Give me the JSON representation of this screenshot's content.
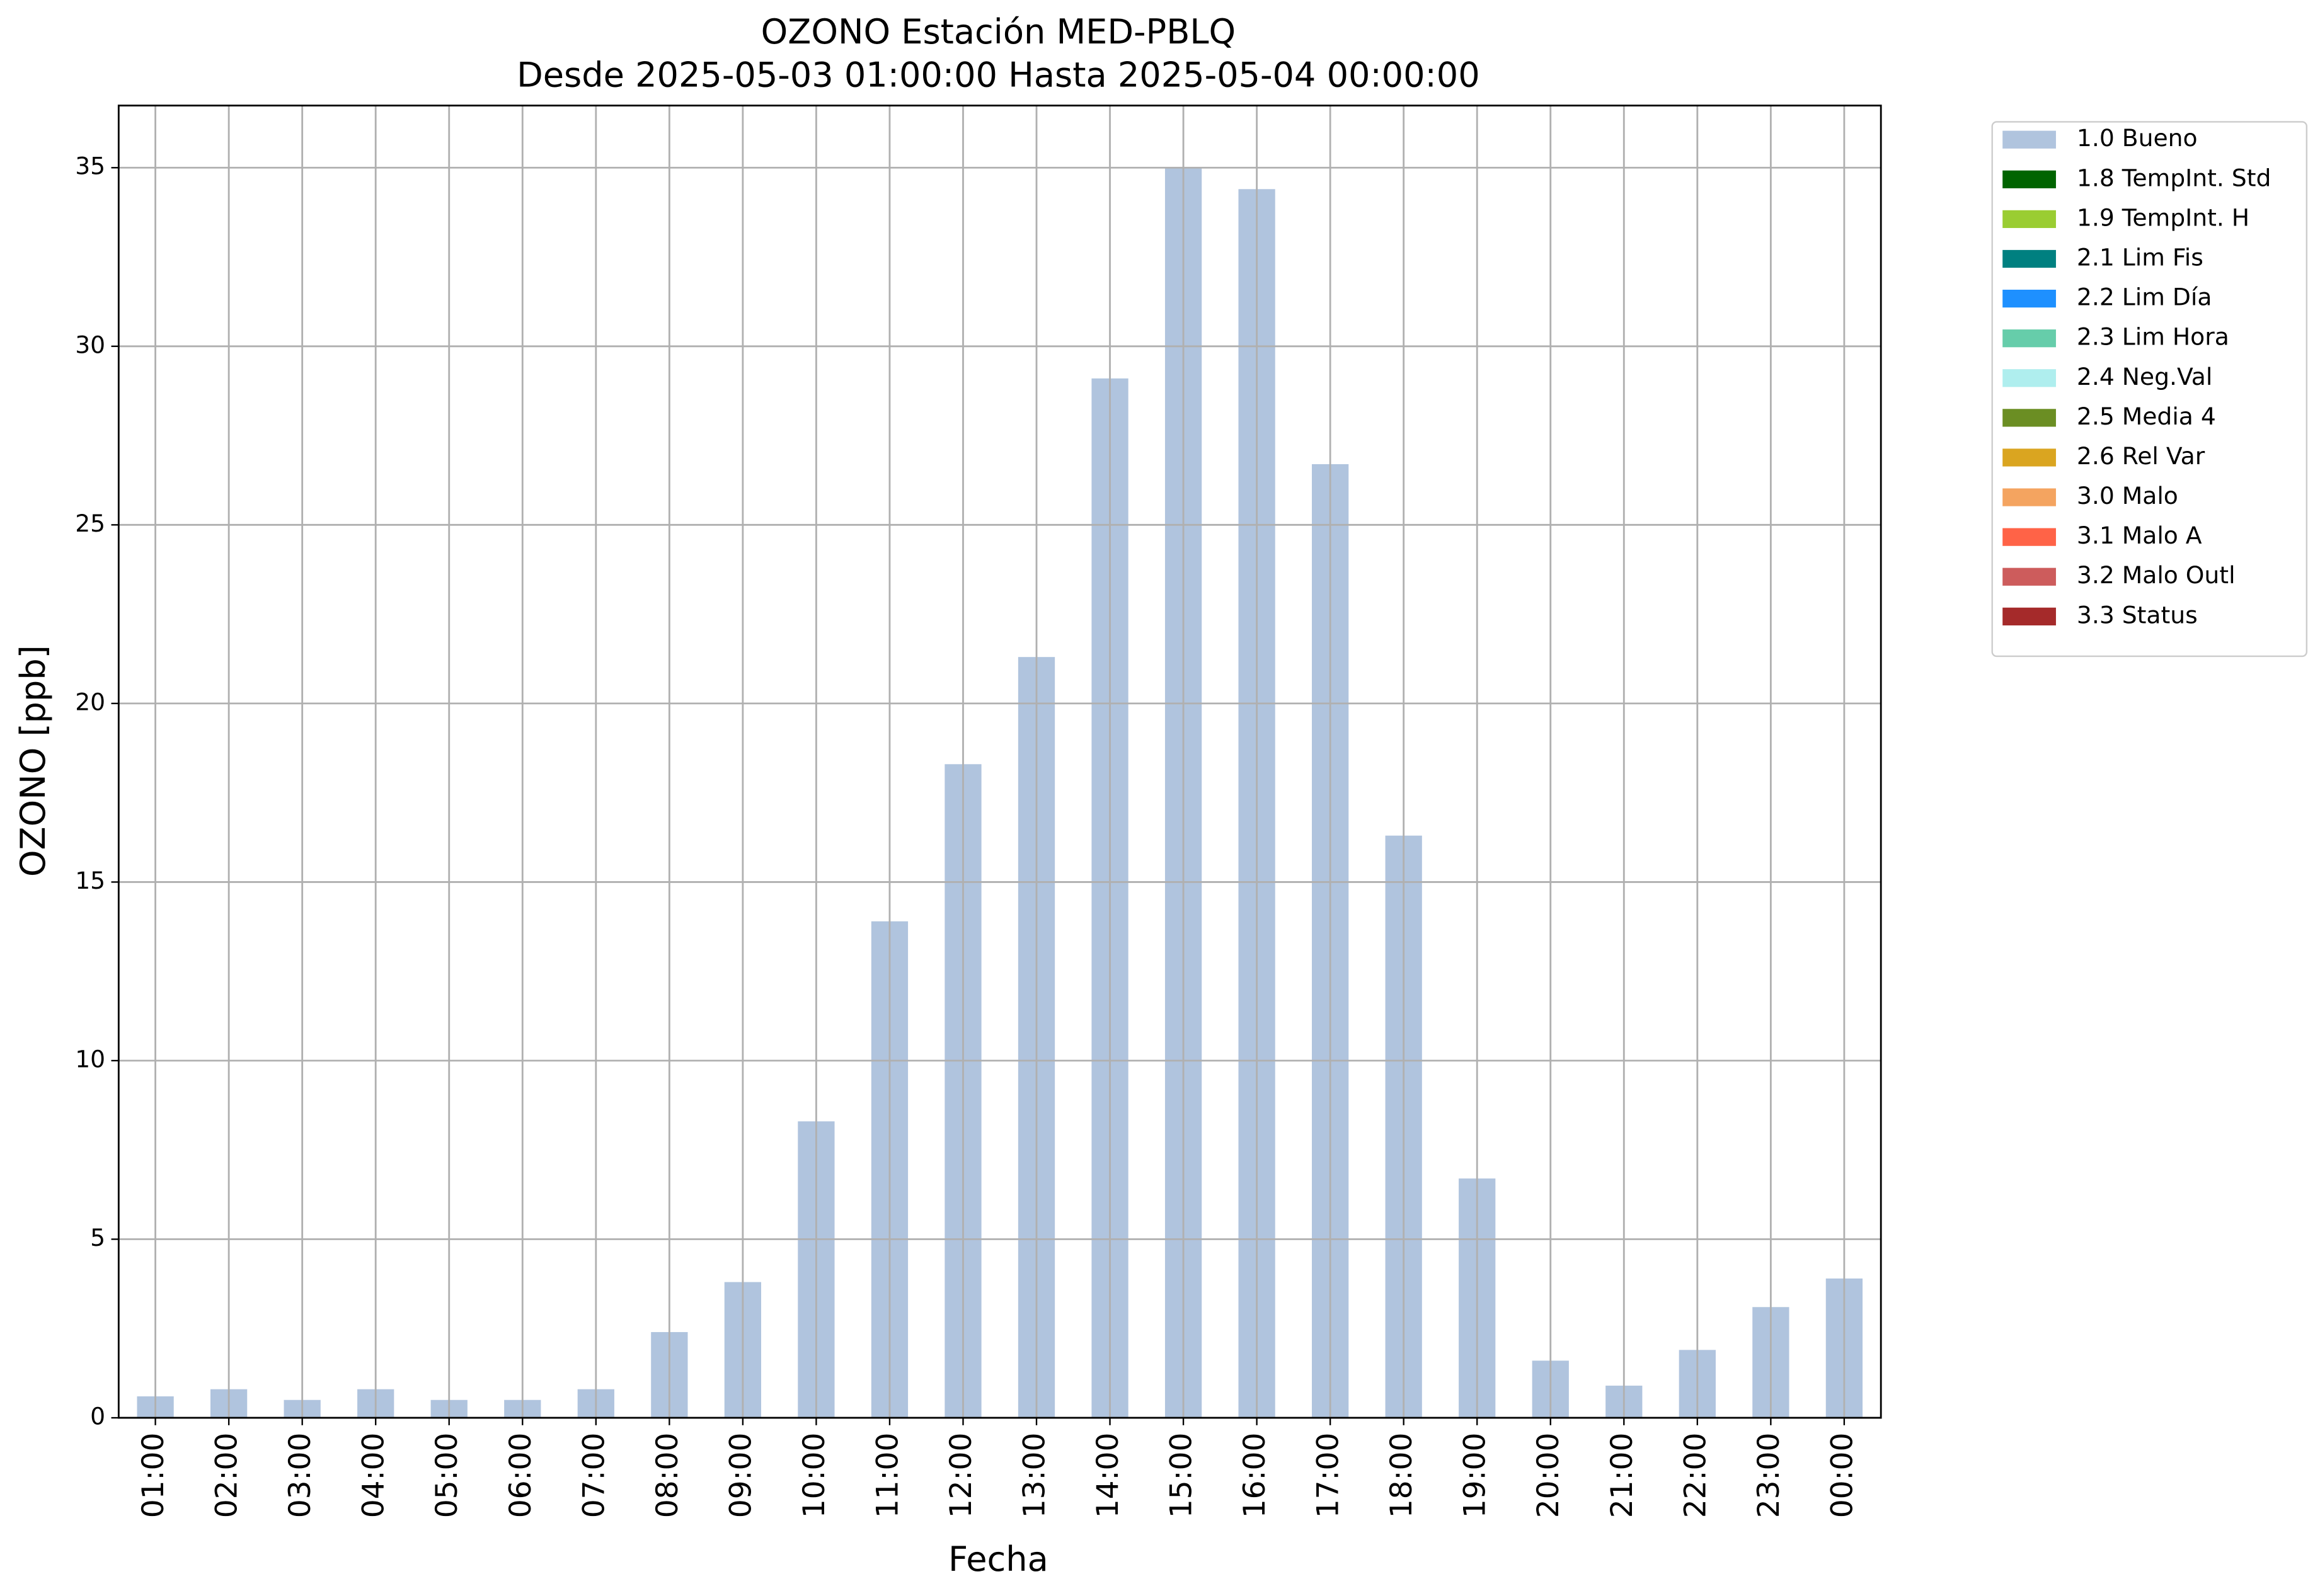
{
  "chart_data": {
    "type": "bar",
    "stacked": true,
    "title": "OZONO Estación MED-PBLQ",
    "subtitle": "Desde 2025-05-03 01:00:00 Hasta 2025-05-04 00:00:00",
    "x_label": "Fecha",
    "y_label": "OZONO [ppb]",
    "categories": [
      "01:00",
      "02:00",
      "03:00",
      "04:00",
      "05:00",
      "06:00",
      "07:00",
      "08:00",
      "09:00",
      "10:00",
      "11:00",
      "12:00",
      "13:00",
      "14:00",
      "15:00",
      "16:00",
      "17:00",
      "18:00",
      "19:00",
      "20:00",
      "21:00",
      "22:00",
      "23:00",
      "00:00"
    ],
    "series": [
      {
        "name": "1.0 Bueno",
        "color": "#b0c4de",
        "values": [
          0.6,
          0.8,
          0.5,
          0.8,
          0.5,
          0.5,
          0.8,
          2.4,
          3.8,
          8.3,
          13.9,
          18.3,
          21.3,
          29.1,
          35.0,
          34.4,
          26.7,
          16.3,
          6.7,
          1.6,
          0.9,
          1.9,
          3.1,
          3.9
        ]
      },
      {
        "name": "1.8 TempInt. Std",
        "color": "#006400",
        "values": [
          null,
          null,
          null,
          null,
          null,
          null,
          null,
          null,
          null,
          null,
          null,
          null,
          null,
          null,
          null,
          null,
          null,
          null,
          null,
          null,
          null,
          null,
          null,
          null
        ]
      },
      {
        "name": "1.9 TempInt. H",
        "color": "#9acd32",
        "values": [
          null,
          null,
          null,
          null,
          null,
          null,
          null,
          null,
          null,
          null,
          null,
          null,
          null,
          null,
          null,
          null,
          null,
          null,
          null,
          null,
          null,
          null,
          null,
          null
        ]
      },
      {
        "name": "2.1 Lim Fis",
        "color": "#008080",
        "values": [
          null,
          null,
          null,
          null,
          null,
          null,
          null,
          null,
          null,
          null,
          null,
          null,
          null,
          null,
          null,
          null,
          null,
          null,
          null,
          null,
          null,
          null,
          null,
          null
        ]
      },
      {
        "name": "2.2 Lim Día",
        "color": "#1e90ff",
        "values": [
          null,
          null,
          null,
          null,
          null,
          null,
          null,
          null,
          null,
          null,
          null,
          null,
          null,
          null,
          null,
          null,
          null,
          null,
          null,
          null,
          null,
          null,
          null,
          null
        ]
      },
      {
        "name": "2.3 Lim Hora",
        "color": "#66cdaa",
        "values": [
          null,
          null,
          null,
          null,
          null,
          null,
          null,
          null,
          null,
          null,
          null,
          null,
          null,
          null,
          null,
          null,
          null,
          null,
          null,
          null,
          null,
          null,
          null,
          null
        ]
      },
      {
        "name": "2.4 Neg.Val",
        "color": "#afeeee",
        "values": [
          null,
          null,
          null,
          null,
          null,
          null,
          null,
          null,
          null,
          null,
          null,
          null,
          null,
          null,
          null,
          null,
          null,
          null,
          null,
          null,
          null,
          null,
          null,
          null
        ]
      },
      {
        "name": "2.5 Media 4",
        "color": "#6b8e23",
        "values": [
          null,
          null,
          null,
          null,
          null,
          null,
          null,
          null,
          null,
          null,
          null,
          null,
          null,
          null,
          null,
          null,
          null,
          null,
          null,
          null,
          null,
          null,
          null,
          null
        ]
      },
      {
        "name": "2.6 Rel Var",
        "color": "#daa520",
        "values": [
          null,
          null,
          null,
          null,
          null,
          null,
          null,
          null,
          null,
          null,
          null,
          null,
          null,
          null,
          null,
          null,
          null,
          null,
          null,
          null,
          null,
          null,
          null,
          null
        ]
      },
      {
        "name": "3.0 Malo",
        "color": "#f4a460",
        "values": [
          null,
          null,
          null,
          null,
          null,
          null,
          null,
          null,
          null,
          null,
          null,
          null,
          null,
          null,
          null,
          null,
          null,
          null,
          null,
          null,
          null,
          null,
          null,
          null
        ]
      },
      {
        "name": "3.1 Malo A",
        "color": "#ff6347",
        "values": [
          null,
          null,
          null,
          null,
          null,
          null,
          null,
          null,
          null,
          null,
          null,
          null,
          null,
          null,
          null,
          null,
          null,
          null,
          null,
          null,
          null,
          null,
          null,
          null
        ]
      },
      {
        "name": "3.2 Malo Outl",
        "color": "#cd5c5c",
        "values": [
          null,
          null,
          null,
          null,
          null,
          null,
          null,
          null,
          null,
          null,
          null,
          null,
          null,
          null,
          null,
          null,
          null,
          null,
          null,
          null,
          null,
          null,
          null,
          null
        ]
      },
      {
        "name": "3.3 Status",
        "color": "#a52a2a",
        "values": [
          null,
          null,
          null,
          null,
          null,
          null,
          null,
          null,
          null,
          null,
          null,
          null,
          null,
          null,
          null,
          null,
          null,
          null,
          null,
          null,
          null,
          null,
          null,
          null
        ]
      }
    ],
    "ylim": [
      0,
      36.74
    ],
    "yticks": [
      0,
      5,
      10,
      15,
      20,
      25,
      30,
      35
    ],
    "grid": true,
    "legend": "outside-right"
  }
}
